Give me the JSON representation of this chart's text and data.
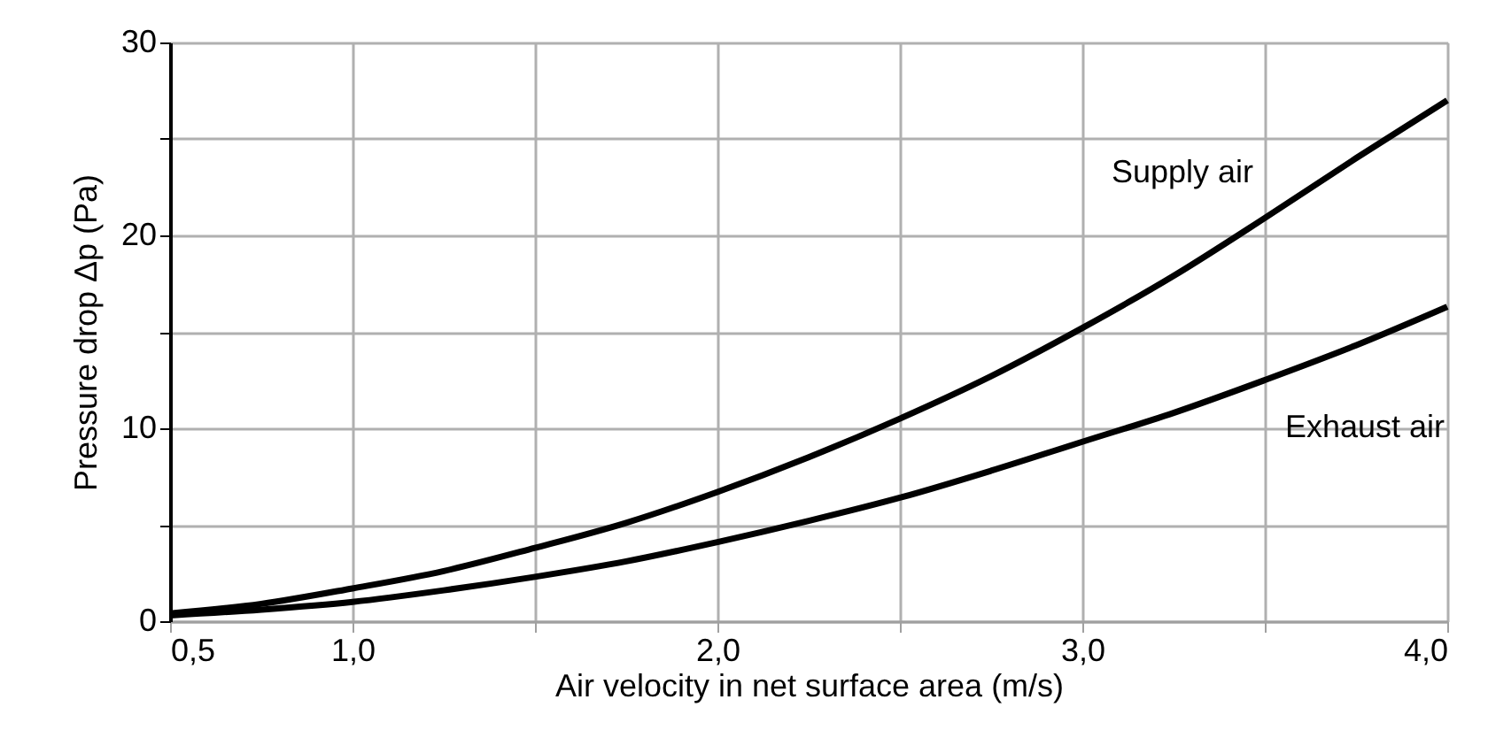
{
  "chart_data": {
    "type": "line",
    "xlabel": "Air velocity in net surface area (m/s)",
    "ylabel": "Pressure drop Δp (Pa)",
    "x": [
      0.5,
      0.75,
      1.0,
      1.25,
      1.5,
      1.75,
      2.0,
      2.25,
      2.5,
      2.75,
      3.0,
      3.25,
      3.5,
      3.75,
      4.0
    ],
    "series": [
      {
        "name": "Supply air",
        "color": "#000000",
        "values": [
          0.4,
          0.9,
          1.7,
          2.6,
          3.8,
          5.1,
          6.7,
          8.5,
          10.5,
          12.7,
          15.2,
          17.9,
          20.9,
          24.0,
          27.0
        ]
      },
      {
        "name": "Exhaust air",
        "color": "#000000",
        "values": [
          0.3,
          0.6,
          1.0,
          1.6,
          2.3,
          3.1,
          4.1,
          5.2,
          6.4,
          7.8,
          9.3,
          10.8,
          12.5,
          14.3,
          16.3
        ]
      }
    ],
    "xlim": [
      0.5,
      4.0
    ],
    "ylim": [
      0,
      30
    ],
    "xticks": [
      {
        "value": 0.5,
        "label": "0,5"
      },
      {
        "value": 1.0,
        "label": "1,0"
      },
      {
        "value": 1.5,
        "label": null
      },
      {
        "value": 2.0,
        "label": "2,0"
      },
      {
        "value": 2.5,
        "label": null
      },
      {
        "value": 3.0,
        "label": "3,0"
      },
      {
        "value": 3.5,
        "label": null
      },
      {
        "value": 4.0,
        "label": "4,0"
      }
    ],
    "yticks": [
      0,
      {
        "value": 5,
        "label": null
      },
      10,
      {
        "value": 15,
        "label": null
      },
      20,
      {
        "value": 25,
        "label": null
      },
      30
    ],
    "grid": true,
    "legend": false,
    "marker": "none",
    "line_style": "solid"
  }
}
